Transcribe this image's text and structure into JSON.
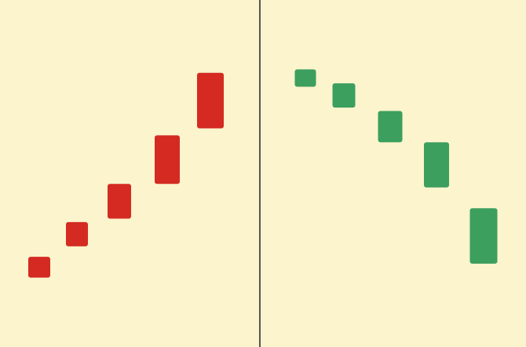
{
  "colors": {
    "background": "#fbf4cc",
    "divider": "#555555",
    "up": "#d42a22",
    "down": "#3c9f5e"
  },
  "chart_data": [
    {
      "type": "bar",
      "variant": "candlestick-bodies",
      "direction": "up",
      "color": "#d42a22",
      "ylim": [
        0,
        100
      ],
      "grid": false,
      "legend": "none",
      "candles": [
        {
          "low": 20,
          "high": 26
        },
        {
          "low": 29,
          "high": 36
        },
        {
          "low": 37,
          "high": 47
        },
        {
          "low": 47,
          "high": 61
        },
        {
          "low": 63,
          "high": 79
        }
      ]
    },
    {
      "type": "bar",
      "variant": "candlestick-bodies",
      "direction": "down",
      "color": "#3c9f5e",
      "ylim": [
        0,
        100
      ],
      "grid": false,
      "legend": "none",
      "candles": [
        {
          "low": 75,
          "high": 80
        },
        {
          "low": 69,
          "high": 76
        },
        {
          "low": 59,
          "high": 68
        },
        {
          "low": 46,
          "high": 59
        },
        {
          "low": 24,
          "high": 40
        }
      ]
    }
  ]
}
